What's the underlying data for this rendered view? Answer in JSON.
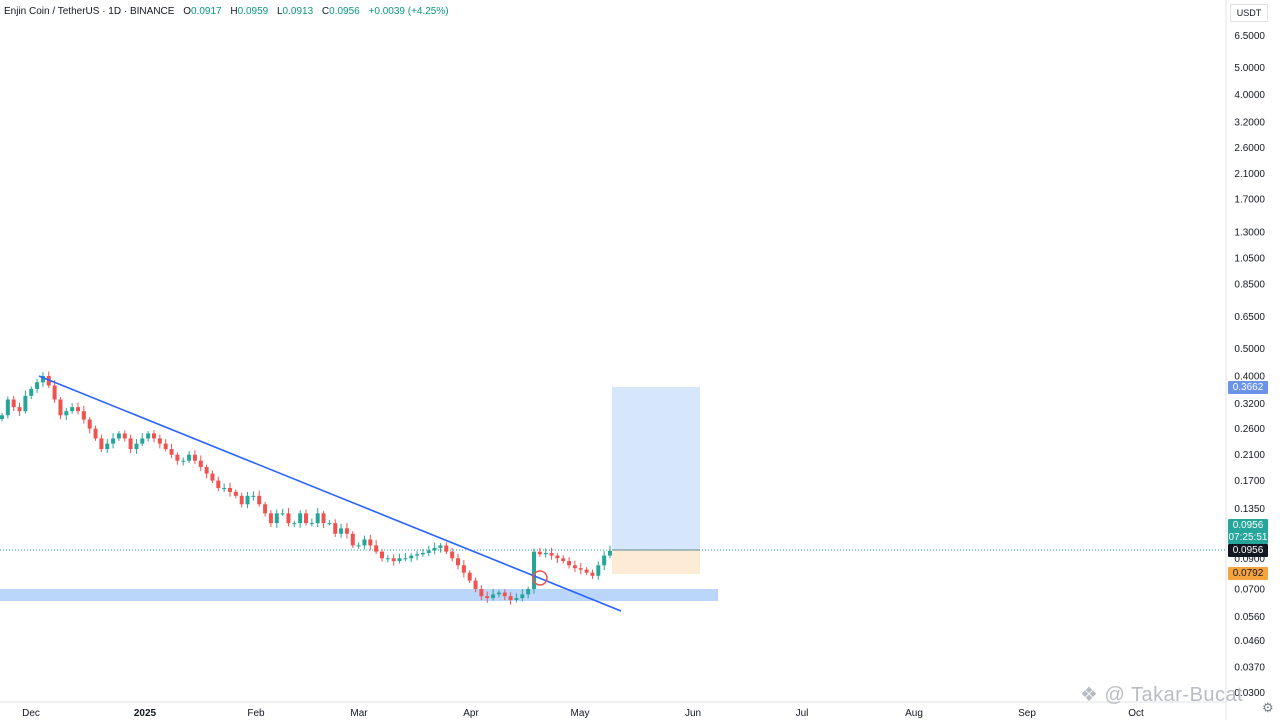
{
  "header": {
    "symbol": "Enjin Coin / TetherUS · 1D · BINANCE",
    "o_label": "O",
    "o_val": "0.0917",
    "h_label": "H",
    "h_val": "0.0959",
    "l_label": "L",
    "l_val": "0.0913",
    "c_label": "C",
    "c_val": "0.0956",
    "change": "+0.0039 (+4.25%)"
  },
  "price_axis": {
    "currency": "USDT",
    "ticks": [
      "6.5000",
      "5.0000",
      "4.0000",
      "3.2000",
      "2.6000",
      "2.1000",
      "1.7000",
      "1.3000",
      "1.0500",
      "0.8500",
      "0.6500",
      "0.5000",
      "0.4000",
      "0.3200",
      "0.2600",
      "0.2100",
      "0.1700",
      "0.1350",
      "0.1050",
      "0.0900",
      "0.0700",
      "0.0560",
      "0.0460",
      "0.0370",
      "0.0300"
    ]
  },
  "time_axis": {
    "labels": [
      "Dec",
      "2025",
      "Feb",
      "Mar",
      "Apr",
      "May",
      "Jun",
      "Jul",
      "Aug",
      "Sep",
      "Oct"
    ]
  },
  "tags": {
    "target": "0.3662",
    "last_price": "0.0956",
    "countdown": "07:25:51",
    "current": "0.0956",
    "stop": "0.0792"
  },
  "colors": {
    "up": "#26a69a",
    "down": "#ef5350",
    "trendline": "#2962ff",
    "support_zone": "#bbd6fb",
    "target_zone": "#d6e6fb",
    "stop_zone": "#fdebd6"
  },
  "watermark": "@ Takar-Bucat",
  "icons": {
    "watermark_logo": "binance-logo-icon",
    "settings": "gear-icon"
  },
  "chart_data": {
    "type": "candlestick",
    "symbol": "ENJUSDT",
    "timeframe": "1D",
    "scale": "log",
    "last": {
      "open": 0.0917,
      "high": 0.0959,
      "low": 0.0913,
      "close": 0.0956
    },
    "long_position": {
      "entry": 0.0956,
      "target": 0.3662,
      "stop": 0.0792
    },
    "trendline": {
      "from": {
        "date": "2024-12-08",
        "price": 0.4
      },
      "to": {
        "date": "2025-05-15",
        "price": 0.0565
      }
    },
    "support_zone": {
      "low": 0.07,
      "high": 0.073
    },
    "closes": [
      0.29,
      0.33,
      0.31,
      0.3,
      0.34,
      0.36,
      0.38,
      0.4,
      0.37,
      0.33,
      0.29,
      0.3,
      0.31,
      0.3,
      0.28,
      0.26,
      0.24,
      0.22,
      0.23,
      0.24,
      0.25,
      0.24,
      0.22,
      0.23,
      0.24,
      0.25,
      0.24,
      0.23,
      0.22,
      0.21,
      0.2,
      0.2,
      0.21,
      0.2,
      0.19,
      0.18,
      0.17,
      0.16,
      0.16,
      0.155,
      0.15,
      0.14,
      0.15,
      0.15,
      0.14,
      0.13,
      0.12,
      0.13,
      0.13,
      0.12,
      0.12,
      0.13,
      0.12,
      0.12,
      0.13,
      0.12,
      0.12,
      0.11,
      0.115,
      0.11,
      0.1,
      0.1,
      0.105,
      0.1,
      0.095,
      0.09,
      0.09,
      0.088,
      0.09,
      0.09,
      0.092,
      0.093,
      0.094,
      0.096,
      0.098,
      0.1,
      0.095,
      0.09,
      0.085,
      0.08,
      0.075,
      0.07,
      0.066,
      0.065,
      0.067,
      0.068,
      0.066,
      0.064,
      0.065,
      0.067,
      0.07,
      0.095,
      0.093,
      0.094,
      0.092,
      0.09,
      0.088,
      0.085,
      0.083,
      0.082,
      0.08,
      0.078,
      0.085,
      0.092,
      0.0956
    ]
  }
}
